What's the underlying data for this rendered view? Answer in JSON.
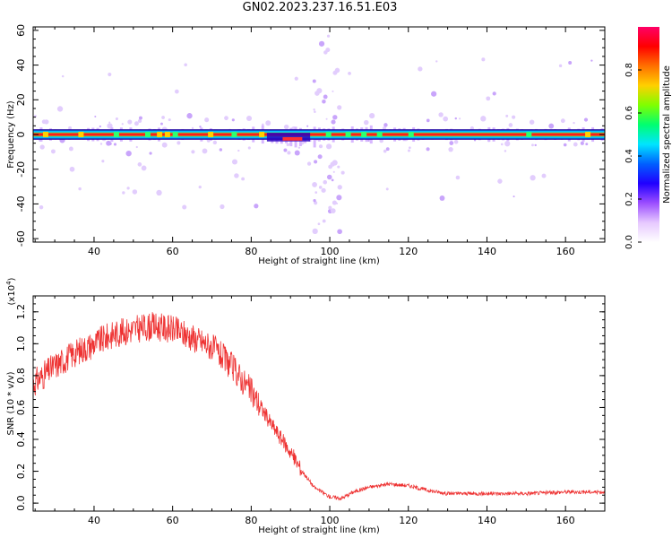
{
  "title": "GN02.2023.237.16.51.E03",
  "chart_data": [
    {
      "type": "heatmap",
      "title": "GN02.2023.237.16.51.E03",
      "xlabel": "Height of straight line (km)",
      "ylabel": "Frequency (Hz)",
      "xlim": [
        24.5,
        170
      ],
      "ylim": [
        -62,
        62
      ],
      "xticks": [
        40,
        60,
        80,
        100,
        120,
        140,
        160
      ],
      "yticks": [
        60,
        40,
        20,
        0,
        -20,
        -40,
        -60
      ],
      "colorbar": {
        "label": "Normalized spectral amplitude",
        "range": [
          0,
          1
        ],
        "ticks": [
          "0.0",
          "0.2",
          "0.4",
          "0.6",
          "0.8"
        ],
        "colors": [
          "#ffffff",
          "#e6c8ff",
          "#9b4dff",
          "#2000ff",
          "#0060ff",
          "#00e5ff",
          "#00ff70",
          "#7fff00",
          "#ffd000",
          "#ff7000",
          "#ff0000",
          "#ff0066"
        ]
      },
      "band": {
        "center_freq_hz": 0,
        "core_halfwidth_hz": 1.5,
        "outer_halfwidth_hz": 3,
        "core_color": "#ff1a1a",
        "outer_color": "#00b8ff",
        "edge_color": "#1a00a0"
      },
      "grid": false
    },
    {
      "type": "line",
      "xlabel": "Height of straight line (km)",
      "ylabel": "SNR (10 * v/v)",
      "y_multiplier_label": "(x10",
      "y_multiplier_exp": "4",
      "xlim": [
        24.5,
        170
      ],
      "ylim": [
        -0.05,
        1.3
      ],
      "xticks": [
        40,
        60,
        80,
        100,
        120,
        140,
        160
      ],
      "yticks": [
        "0.0",
        "0.2",
        "0.4",
        "0.6",
        "0.8",
        "1.0",
        "1.2"
      ],
      "series": [
        {
          "color": "#ee3333",
          "x": [
            24.5,
            30,
            35,
            40,
            45,
            50,
            55,
            60,
            65,
            70,
            75,
            80,
            85,
            90,
            93,
            96,
            100,
            103,
            106,
            110,
            115,
            120,
            125,
            130,
            140,
            150,
            160,
            170
          ],
          "y": [
            0.75,
            0.86,
            0.94,
            1.0,
            1.06,
            1.09,
            1.11,
            1.09,
            1.04,
            0.98,
            0.86,
            0.7,
            0.5,
            0.32,
            0.2,
            0.1,
            0.04,
            0.03,
            0.07,
            0.1,
            0.12,
            0.11,
            0.08,
            0.06,
            0.06,
            0.06,
            0.07,
            0.07
          ]
        }
      ],
      "grid": false
    }
  ]
}
